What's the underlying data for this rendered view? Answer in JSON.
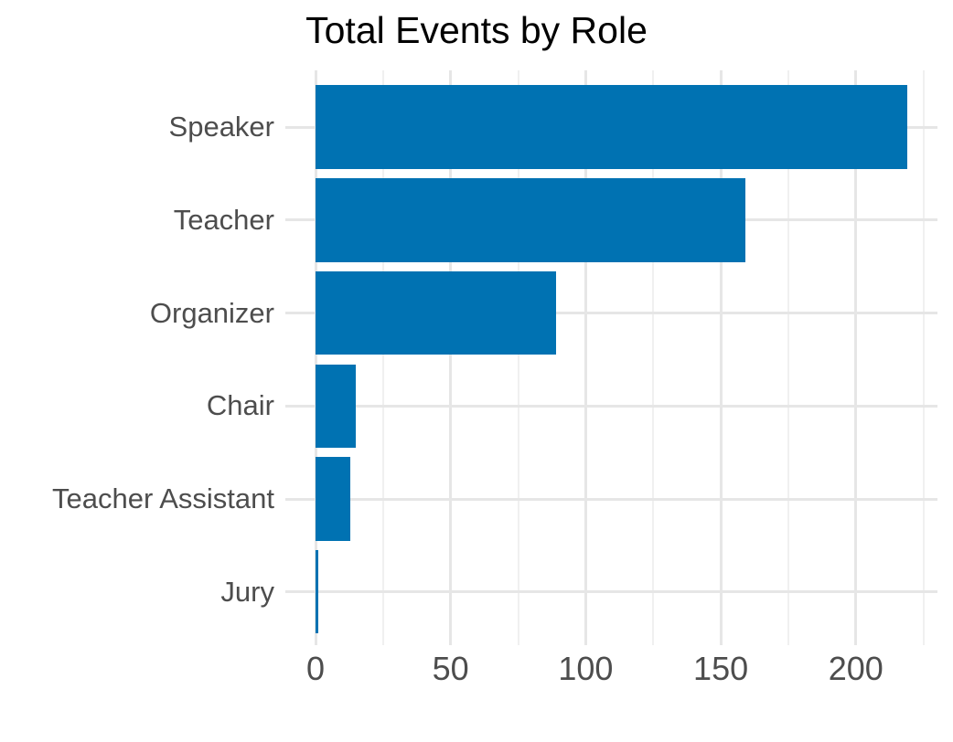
{
  "title": "Total Events by Role",
  "chart_data": {
    "type": "bar",
    "orientation": "horizontal",
    "title": "Total Events by Role",
    "categories": [
      "Speaker",
      "Teacher",
      "Organizer",
      "Chair",
      "Teacher Assistant",
      "Jury"
    ],
    "values": [
      219,
      159,
      89,
      15,
      13,
      1
    ],
    "xlabel": "",
    "ylabel": "",
    "x_major_ticks": [
      0,
      50,
      100,
      150,
      200
    ],
    "x_minor_ticks": [
      25,
      75,
      125,
      175,
      225
    ],
    "xlim": [
      0,
      230
    ],
    "grid": true,
    "legend": "none",
    "colors": {
      "bar_fill": "#0072B2",
      "axis_text": "#4d4d4d",
      "title_text": "#000000",
      "grid_major": "#e6e6e6",
      "grid_minor": "#f0f0f0",
      "background": "#ffffff"
    }
  }
}
